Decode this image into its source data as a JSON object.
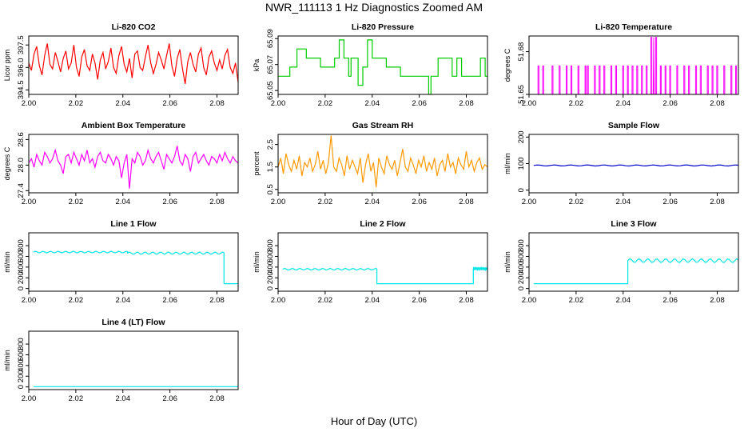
{
  "figure": {
    "title": "NWR_111113  1 Hz Diagnostics Zoomed AM",
    "xlabel": "Hour of Day (UTC)"
  },
  "chart_data": [
    {
      "id": "co2",
      "type": "line",
      "title": "Li-820 CO2",
      "ylabel": "Licor ppm",
      "color": "#ff0000",
      "xlim": [
        2.0,
        2.089
      ],
      "xticks": [
        "2.00",
        "2.02",
        "2.04",
        "2.06",
        "2.08"
      ],
      "xtick_values": [
        2.0,
        2.02,
        2.04,
        2.06,
        2.08
      ],
      "ylim": [
        394.2,
        398.1
      ],
      "yticks": [
        "394.5",
        "396.0",
        "397.5"
      ],
      "ytick_values": [
        394.5,
        396.0,
        397.5
      ],
      "series": [
        {
          "name": "CO2",
          "x_range": [
            2.0,
            2.089
          ],
          "values": [
            396.3,
            395.8,
            396.9,
            397.4,
            396.1,
            395.5,
            396.8,
            397.6,
            396.2,
            395.9,
            397.0,
            396.4,
            395.7,
            396.6,
            397.1,
            395.9,
            396.3,
            397.5,
            396.0,
            395.4,
            396.7,
            397.2,
            396.1,
            395.8,
            396.9,
            396.3,
            395.2,
            396.5,
            397.0,
            395.9,
            396.4,
            397.3,
            396.0,
            395.6,
            396.8,
            397.4,
            396.2,
            395.7,
            396.6,
            395.3,
            396.9,
            397.1,
            396.0,
            395.8,
            396.7,
            397.5,
            396.3,
            395.6,
            396.2,
            397.0,
            396.5,
            395.9,
            396.8,
            397.6,
            396.1,
            395.4,
            396.6,
            397.2,
            395.9,
            394.9,
            396.4,
            397.0,
            396.2,
            395.7,
            396.9,
            397.3,
            396.0,
            395.5,
            396.7,
            397.1,
            396.3,
            395.8,
            396.5,
            395.9,
            396.8,
            397.2,
            396.0,
            395.6,
            396.3,
            395.0
          ]
        }
      ]
    },
    {
      "id": "pressure",
      "type": "step",
      "title": "Li-820 Pressure",
      "ylabel": "kPa",
      "color": "#00cc00",
      "xlim": [
        2.0,
        2.089
      ],
      "xticks": [
        "2.00",
        "2.02",
        "2.04",
        "2.06",
        "2.08"
      ],
      "xtick_values": [
        2.0,
        2.02,
        2.04,
        2.06,
        2.08
      ],
      "ylim": [
        65.047,
        65.092
      ],
      "yticks": [
        "65.05",
        "65.07",
        "65.09"
      ],
      "ytick_values": [
        65.05,
        65.07,
        65.09
      ],
      "series": [
        {
          "name": "Pressure",
          "points": [
            [
              2.0,
              65.061
            ],
            [
              2.005,
              65.061
            ],
            [
              2.005,
              65.068
            ],
            [
              2.008,
              65.068
            ],
            [
              2.008,
              65.082
            ],
            [
              2.012,
              65.082
            ],
            [
              2.012,
              65.075
            ],
            [
              2.018,
              65.075
            ],
            [
              2.018,
              65.068
            ],
            [
              2.024,
              65.068
            ],
            [
              2.024,
              65.075
            ],
            [
              2.026,
              65.075
            ],
            [
              2.026,
              65.089
            ],
            [
              2.028,
              65.089
            ],
            [
              2.028,
              65.075
            ],
            [
              2.03,
              65.075
            ],
            [
              2.03,
              65.061
            ],
            [
              2.031,
              65.061
            ],
            [
              2.031,
              65.075
            ],
            [
              2.034,
              65.075
            ],
            [
              2.034,
              65.054
            ],
            [
              2.036,
              65.054
            ],
            [
              2.036,
              65.068
            ],
            [
              2.038,
              65.068
            ],
            [
              2.038,
              65.089
            ],
            [
              2.04,
              65.089
            ],
            [
              2.04,
              65.075
            ],
            [
              2.046,
              65.075
            ],
            [
              2.046,
              65.068
            ],
            [
              2.052,
              65.068
            ],
            [
              2.052,
              65.061
            ],
            [
              2.064,
              65.061
            ],
            [
              2.064,
              65.047
            ],
            [
              2.065,
              65.047
            ],
            [
              2.065,
              65.061
            ],
            [
              2.068,
              65.061
            ],
            [
              2.068,
              65.075
            ],
            [
              2.074,
              65.075
            ],
            [
              2.074,
              65.061
            ],
            [
              2.076,
              65.061
            ],
            [
              2.076,
              65.075
            ],
            [
              2.078,
              65.075
            ],
            [
              2.078,
              65.061
            ],
            [
              2.086,
              65.061
            ],
            [
              2.086,
              65.075
            ],
            [
              2.088,
              65.075
            ],
            [
              2.088,
              65.061
            ],
            [
              2.089,
              65.061
            ]
          ]
        }
      ]
    },
    {
      "id": "temperature",
      "type": "spikes",
      "title": "Li-820 Temperature",
      "ylabel": "degrees C",
      "color": "#ff00ff",
      "xlim": [
        2.0,
        2.089
      ],
      "xticks": [
        "2.00",
        "2.02",
        "2.04",
        "2.06",
        "2.08"
      ],
      "xtick_values": [
        2.0,
        2.02,
        2.04,
        2.06,
        2.08
      ],
      "ylim": [
        51.65,
        51.691
      ],
      "yticks": [
        "51.65",
        "51.68"
      ],
      "ytick_values": [
        51.65,
        51.68
      ],
      "series": [
        {
          "name": "Temperature",
          "baseline": 51.65,
          "level": 51.67,
          "peak": 51.69,
          "peak_x": 2.053,
          "spike_x": [
            2.004,
            2.006,
            2.01,
            2.013,
            2.016,
            2.018,
            2.021,
            2.024,
            2.025,
            2.028,
            2.03,
            2.032,
            2.035,
            2.037,
            2.04,
            2.042,
            2.044,
            2.046,
            2.048,
            2.05,
            2.052,
            2.054,
            2.056,
            2.058,
            2.06,
            2.063,
            2.066,
            2.068,
            2.071,
            2.073,
            2.076,
            2.078,
            2.08,
            2.083,
            2.086,
            2.088
          ]
        }
      ]
    },
    {
      "id": "ambient",
      "type": "line",
      "title": "Ambient Box Temperature",
      "ylabel": "degrees C",
      "color": "#ff00ff",
      "xlim": [
        2.0,
        2.089
      ],
      "xticks": [
        "2.00",
        "2.02",
        "2.04",
        "2.06",
        "2.08"
      ],
      "xtick_values": [
        2.0,
        2.02,
        2.04,
        2.06,
        2.08
      ],
      "ylim": [
        27.35,
        28.72
      ],
      "yticks": [
        "27.4",
        "28.0",
        "28.6"
      ],
      "ytick_values": [
        27.4,
        28.0,
        28.6
      ],
      "series": [
        {
          "name": "Ambient",
          "x_range": [
            2.0,
            2.089
          ],
          "values": [
            28.05,
            28.15,
            27.95,
            28.25,
            28.1,
            28.0,
            28.3,
            28.2,
            28.05,
            28.15,
            28.35,
            28.1,
            28.0,
            27.8,
            28.2,
            28.25,
            28.05,
            28.3,
            28.15,
            28.0,
            28.25,
            28.1,
            28.35,
            28.05,
            28.15,
            27.95,
            28.2,
            28.3,
            28.1,
            28.05,
            28.25,
            28.15,
            28.0,
            28.2,
            28.1,
            27.7,
            28.05,
            28.25,
            27.45,
            28.15,
            28.05,
            28.3,
            28.2,
            28.0,
            28.1,
            28.35,
            28.15,
            28.05,
            28.2,
            28.3,
            28.1,
            27.9,
            28.25,
            28.15,
            28.05,
            28.2,
            28.45,
            28.1,
            28.0,
            28.25,
            28.15,
            27.85,
            28.2,
            28.3,
            28.05,
            28.15,
            28.25,
            28.1,
            28.0,
            28.2,
            28.15,
            28.05,
            28.25,
            28.1,
            28.3,
            28.15,
            28.05,
            28.2,
            28.1,
            28.05
          ]
        }
      ]
    },
    {
      "id": "rh",
      "type": "line",
      "title": "Gas Stream RH",
      "ylabel": "percent",
      "color": "#ff9900",
      "xlim": [
        2.0,
        2.089
      ],
      "xticks": [
        "2.00",
        "2.02",
        "2.04",
        "2.06",
        "2.08"
      ],
      "xtick_values": [
        2.0,
        2.02,
        2.04,
        2.06,
        2.08
      ],
      "ylim": [
        0.35,
        2.95
      ],
      "yticks": [
        "0.5",
        "1.5",
        "2.5"
      ],
      "ytick_values": [
        0.5,
        1.5,
        2.5
      ],
      "series": [
        {
          "name": "RH",
          "x_range": [
            2.0,
            2.089
          ],
          "values": [
            1.5,
            1.9,
            1.2,
            2.1,
            1.6,
            1.3,
            1.8,
            1.4,
            2.0,
            1.1,
            1.7,
            1.5,
            1.9,
            1.3,
            1.6,
            2.2,
            1.4,
            1.8,
            1.2,
            1.7,
            2.9,
            1.5,
            1.3,
            1.9,
            1.6,
            1.1,
            2.0,
            1.4,
            1.8,
            1.5,
            1.2,
            1.9,
            0.8,
            1.6,
            2.1,
            1.3,
            1.7,
            0.6,
            1.9,
            1.5,
            1.2,
            2.0,
            1.6,
            1.4,
            1.8,
            1.1,
            1.7,
            2.3,
            1.5,
            1.3,
            1.9,
            1.6,
            1.2,
            1.8,
            1.5,
            2.0,
            1.3,
            1.7,
            1.4,
            1.9,
            1.1,
            1.6,
            1.8,
            1.3,
            2.1,
            1.5,
            1.7,
            1.2,
            1.9,
            1.6,
            1.4,
            2.2,
            1.5,
            1.8,
            1.3,
            1.7,
            1.9,
            1.4,
            1.6,
            1.5
          ]
        }
      ]
    },
    {
      "id": "sample",
      "type": "line",
      "title": "Sample Flow",
      "ylabel": "ml/min",
      "color": "#0000cc",
      "xlim": [
        2.0,
        2.089
      ],
      "xticks": [
        "2.00",
        "2.02",
        "2.04",
        "2.06",
        "2.08"
      ],
      "xtick_values": [
        2.0,
        2.02,
        2.04,
        2.06,
        2.08
      ],
      "ylim": [
        -10,
        210
      ],
      "yticks": [
        "0",
        "100",
        "200"
      ],
      "ytick_values": [
        0,
        100,
        200
      ],
      "series": [
        {
          "name": "Sample",
          "segments": [
            {
              "x0": 2.002,
              "x1": 2.089,
              "level": 93,
              "wobble": 2
            }
          ]
        }
      ]
    },
    {
      "id": "line1",
      "type": "line",
      "title": "Line 1 Flow",
      "ylabel": "ml/min",
      "color": "#00e5e5",
      "xlim": [
        2.0,
        2.089
      ],
      "xticks": [
        "2.00",
        "2.02",
        "2.04",
        "2.06",
        "2.08"
      ],
      "xtick_values": [
        2.0,
        2.02,
        2.04,
        2.06,
        2.08
      ],
      "ylim": [
        -50,
        1040
      ],
      "yticks": [
        "0",
        "200",
        "400",
        "600",
        "800"
      ],
      "ytick_values": [
        0,
        200,
        400,
        600,
        800
      ],
      "series": [
        {
          "name": "Line 1",
          "segments": [
            {
              "x0": 2.002,
              "x1": 2.042,
              "level": 680,
              "wobble": 14
            },
            {
              "x0": 2.042,
              "x1": 2.083,
              "level": 660,
              "wobble": 20
            },
            {
              "x0": 2.083,
              "x1": 2.089,
              "level": 90,
              "wobble": 0
            }
          ]
        }
      ]
    },
    {
      "id": "line2",
      "type": "line",
      "title": "Line 2 Flow",
      "ylabel": "ml/min",
      "color": "#00e5e5",
      "xlim": [
        2.0,
        2.089
      ],
      "xticks": [
        "2.00",
        "2.02",
        "2.04",
        "2.06",
        "2.08"
      ],
      "xtick_values": [
        2.0,
        2.02,
        2.04,
        2.06,
        2.08
      ],
      "ylim": [
        -50,
        1040
      ],
      "yticks": [
        "0",
        "200",
        "400",
        "600",
        "800"
      ],
      "ytick_values": [
        0,
        200,
        400,
        600,
        800
      ],
      "series": [
        {
          "name": "Line 2",
          "segments": [
            {
              "x0": 2.002,
              "x1": 2.042,
              "level": 360,
              "wobble": 14
            },
            {
              "x0": 2.042,
              "x1": 2.083,
              "level": 90,
              "wobble": 0
            },
            {
              "x0": 2.083,
              "x1": 2.089,
              "level": 370,
              "wobble": 18
            }
          ]
        }
      ]
    },
    {
      "id": "line3",
      "type": "line",
      "title": "Line 3 Flow",
      "ylabel": "ml/min",
      "color": "#00e5e5",
      "xlim": [
        2.0,
        2.089
      ],
      "xticks": [
        "2.00",
        "2.02",
        "2.04",
        "2.06",
        "2.08"
      ],
      "xtick_values": [
        2.0,
        2.02,
        2.04,
        2.06,
        2.08
      ],
      "ylim": [
        -50,
        1040
      ],
      "yticks": [
        "0",
        "200",
        "400",
        "600",
        "800"
      ],
      "ytick_values": [
        0,
        200,
        400,
        600,
        800
      ],
      "series": [
        {
          "name": "Line 3",
          "segments": [
            {
              "x0": 2.002,
              "x1": 2.042,
              "level": 90,
              "wobble": 0
            },
            {
              "x0": 2.042,
              "x1": 2.089,
              "level": 520,
              "wobble": 35
            }
          ]
        }
      ]
    },
    {
      "id": "line4",
      "type": "line",
      "title": "Line 4 (LT) Flow",
      "ylabel": "ml/min",
      "color": "#00e5e5",
      "xlim": [
        2.0,
        2.089
      ],
      "xticks": [
        "2.00",
        "2.02",
        "2.04",
        "2.06",
        "2.08"
      ],
      "xtick_values": [
        2.0,
        2.02,
        2.04,
        2.06,
        2.08
      ],
      "ylim": [
        -50,
        1040
      ],
      "yticks": [
        "0",
        "200",
        "400",
        "600",
        "800"
      ],
      "ytick_values": [
        0,
        200,
        400,
        600,
        800
      ],
      "series": [
        {
          "name": "Line 4",
          "segments": [
            {
              "x0": 2.002,
              "x1": 2.089,
              "level": 5,
              "wobble": 0
            }
          ]
        }
      ]
    }
  ]
}
